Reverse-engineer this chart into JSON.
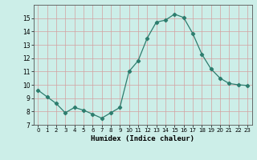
{
  "x": [
    0,
    1,
    2,
    3,
    4,
    5,
    6,
    7,
    8,
    9,
    10,
    11,
    12,
    13,
    14,
    15,
    16,
    17,
    18,
    19,
    20,
    21,
    22,
    23
  ],
  "y": [
    9.6,
    9.1,
    8.6,
    7.9,
    8.3,
    8.1,
    7.8,
    7.5,
    7.9,
    8.3,
    11.0,
    11.8,
    13.5,
    14.7,
    14.85,
    15.3,
    15.05,
    13.85,
    12.3,
    11.2,
    10.5,
    10.1,
    10.0,
    9.95
  ],
  "xlim": [
    -0.5,
    23.5
  ],
  "ylim": [
    7,
    16
  ],
  "yticks": [
    7,
    8,
    9,
    10,
    11,
    12,
    13,
    14,
    15
  ],
  "xticks": [
    0,
    1,
    2,
    3,
    4,
    5,
    6,
    7,
    8,
    9,
    10,
    11,
    12,
    13,
    14,
    15,
    16,
    17,
    18,
    19,
    20,
    21,
    22,
    23
  ],
  "xlabel": "Humidex (Indice chaleur)",
  "line_color": "#2d7d6e",
  "marker": "D",
  "marker_size": 2.2,
  "bg_color": "#cceee8",
  "grid_color": "#d4a0a0",
  "title": ""
}
